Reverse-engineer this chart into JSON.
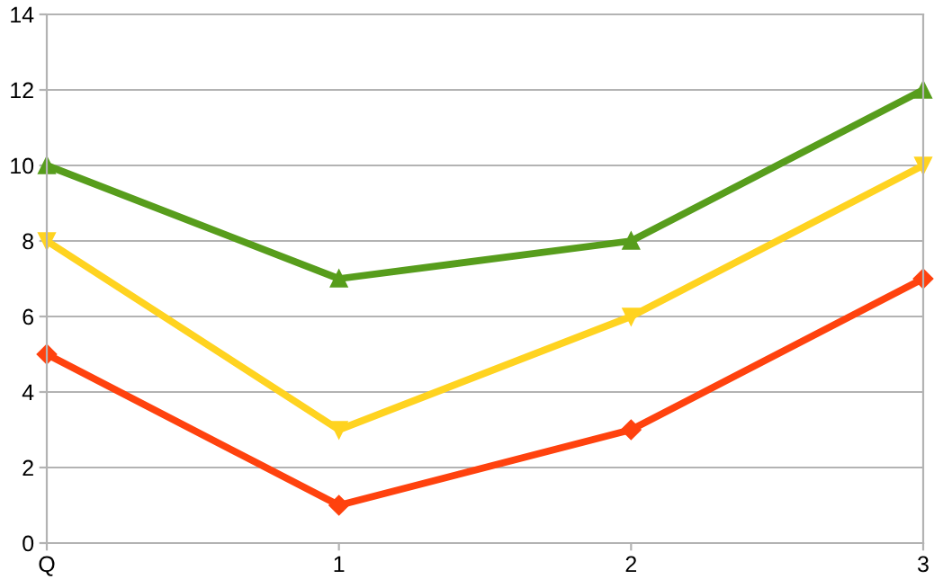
{
  "chart_data": {
    "type": "line",
    "categories": [
      "Q",
      "1",
      "2",
      "3"
    ],
    "series": [
      {
        "color": "#579d1c",
        "marker": "triangle",
        "values": [
          10,
          7,
          8,
          12
        ]
      },
      {
        "color": "#ffd320",
        "marker": "triangle-down",
        "values": [
          8,
          3,
          6,
          10
        ]
      },
      {
        "color": "#ff420e",
        "marker": "diamond",
        "values": [
          5,
          1,
          3,
          7
        ]
      }
    ],
    "ylim": [
      0,
      14
    ],
    "yticks": [
      0,
      2,
      4,
      6,
      8,
      10,
      12,
      14
    ],
    "grid": "y",
    "legend": false,
    "line_style": "solid"
  }
}
